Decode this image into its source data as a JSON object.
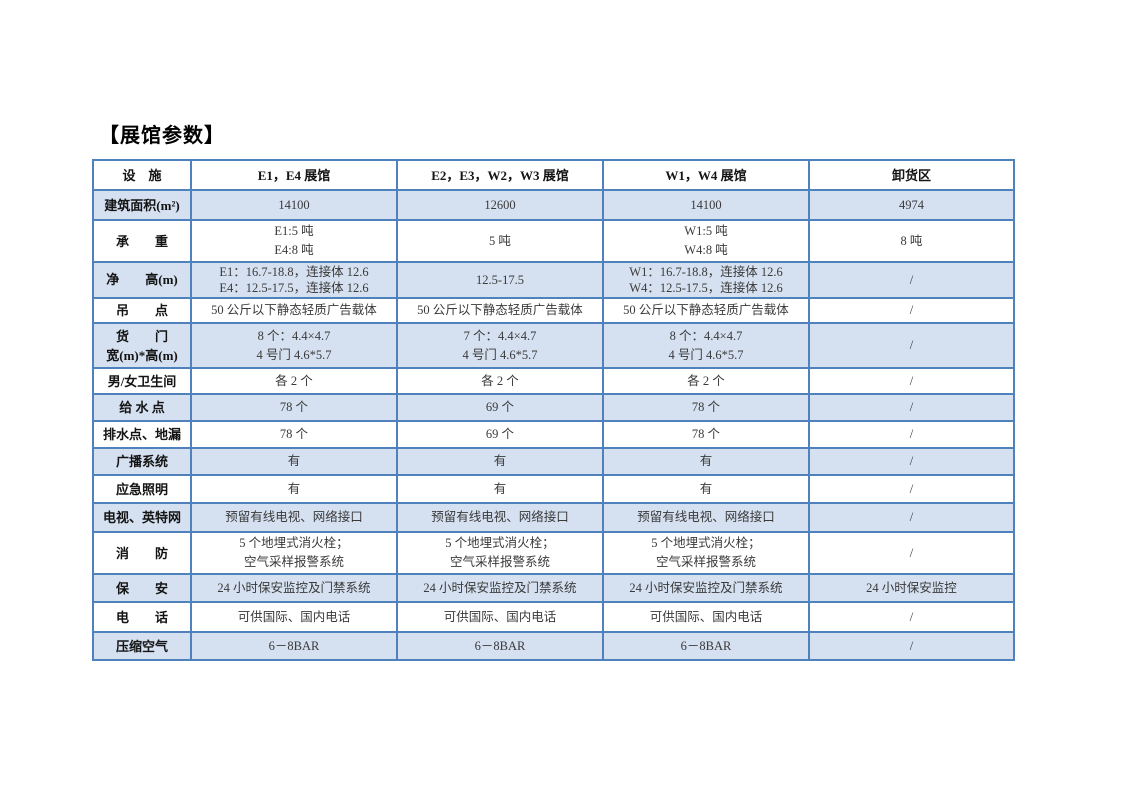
{
  "page": {
    "title": "【展馆参数】"
  },
  "colors": {
    "table_border": "#4f81bd",
    "row_band": "#d5e0f0",
    "body_text": "#3a3a3a",
    "label_text": "#141414"
  },
  "table": {
    "columns": [
      "设　施",
      "E1，E4 展馆",
      "E2，E3，W2，W3 展馆",
      "W1，W4 展馆",
      "卸货区"
    ],
    "rows": [
      {
        "label": [
          "建筑面积(m²)"
        ],
        "cells": [
          [
            "14100"
          ],
          [
            "12600"
          ],
          [
            "14100"
          ],
          [
            "4974"
          ]
        ]
      },
      {
        "label": [
          "承　　重"
        ],
        "cells": [
          [
            "E1:5 吨",
            "E4:8 吨"
          ],
          [
            "5 吨"
          ],
          [
            "W1:5 吨",
            "W4:8 吨"
          ],
          [
            "8 吨"
          ]
        ]
      },
      {
        "label": [
          "净　　高(m)"
        ],
        "cells": [
          [
            "E1：16.7-18.8，连接体 12.6",
            "E4：12.5-17.5，连接体 12.6"
          ],
          [
            "12.5-17.5"
          ],
          [
            "W1：16.7-18.8，连接体 12.6",
            "W4：12.5-17.5，连接体 12.6"
          ],
          [
            "/"
          ]
        ]
      },
      {
        "label": [
          "吊　　点"
        ],
        "cells": [
          [
            "50 公斤以下静态轻质广告载体"
          ],
          [
            "50 公斤以下静态轻质广告载体"
          ],
          [
            "50 公斤以下静态轻质广告载体"
          ],
          [
            "/"
          ]
        ]
      },
      {
        "label": [
          "货　　门",
          "宽(m)*高(m)"
        ],
        "cells": [
          [
            "8 个：4.4×4.7",
            "4 号门 4.6*5.7"
          ],
          [
            "7 个：4.4×4.7",
            "4 号门 4.6*5.7"
          ],
          [
            "8 个：4.4×4.7",
            "4 号门 4.6*5.7"
          ],
          [
            "/"
          ]
        ]
      },
      {
        "label": [
          "男/女卫生间"
        ],
        "cells": [
          [
            "各 2 个"
          ],
          [
            "各 2 个"
          ],
          [
            "各 2 个"
          ],
          [
            "/"
          ]
        ]
      },
      {
        "label": [
          "给 水 点"
        ],
        "cells": [
          [
            "78 个"
          ],
          [
            "69 个"
          ],
          [
            "78 个"
          ],
          [
            "/"
          ]
        ]
      },
      {
        "label": [
          "排水点、地漏"
        ],
        "cells": [
          [
            "78 个"
          ],
          [
            "69 个"
          ],
          [
            "78 个"
          ],
          [
            "/"
          ]
        ]
      },
      {
        "label": [
          "广播系统"
        ],
        "cells": [
          [
            "有"
          ],
          [
            "有"
          ],
          [
            "有"
          ],
          [
            "/"
          ]
        ]
      },
      {
        "label": [
          "应急照明"
        ],
        "cells": [
          [
            "有"
          ],
          [
            "有"
          ],
          [
            "有"
          ],
          [
            "/"
          ]
        ]
      },
      {
        "label": [
          "电视、英特网"
        ],
        "cells": [
          [
            "预留有线电视、网络接口"
          ],
          [
            "预留有线电视、网络接口"
          ],
          [
            "预留有线电视、网络接口"
          ],
          [
            "/"
          ]
        ]
      },
      {
        "label": [
          "消　　防"
        ],
        "cells": [
          [
            "5 个地埋式消火栓；",
            "空气采样报警系统"
          ],
          [
            "5 个地埋式消火栓；",
            "空气采样报警系统"
          ],
          [
            "5 个地埋式消火栓；",
            "空气采样报警系统"
          ],
          [
            "/"
          ]
        ]
      },
      {
        "label": [
          "保　　安"
        ],
        "cells": [
          [
            "24 小时保安监控及门禁系统"
          ],
          [
            "24 小时保安监控及门禁系统"
          ],
          [
            "24 小时保安监控及门禁系统"
          ],
          [
            "24 小时保安监控"
          ]
        ]
      },
      {
        "label": [
          "电　　话"
        ],
        "cells": [
          [
            "可供国际、国内电话"
          ],
          [
            "可供国际、国内电话"
          ],
          [
            "可供国际、国内电话"
          ],
          [
            "/"
          ]
        ]
      },
      {
        "label": [
          "压缩空气"
        ],
        "cells": [
          [
            "6－8BAR"
          ],
          [
            "6－8BAR"
          ],
          [
            "6－8BAR"
          ],
          [
            "/"
          ]
        ]
      }
    ]
  }
}
